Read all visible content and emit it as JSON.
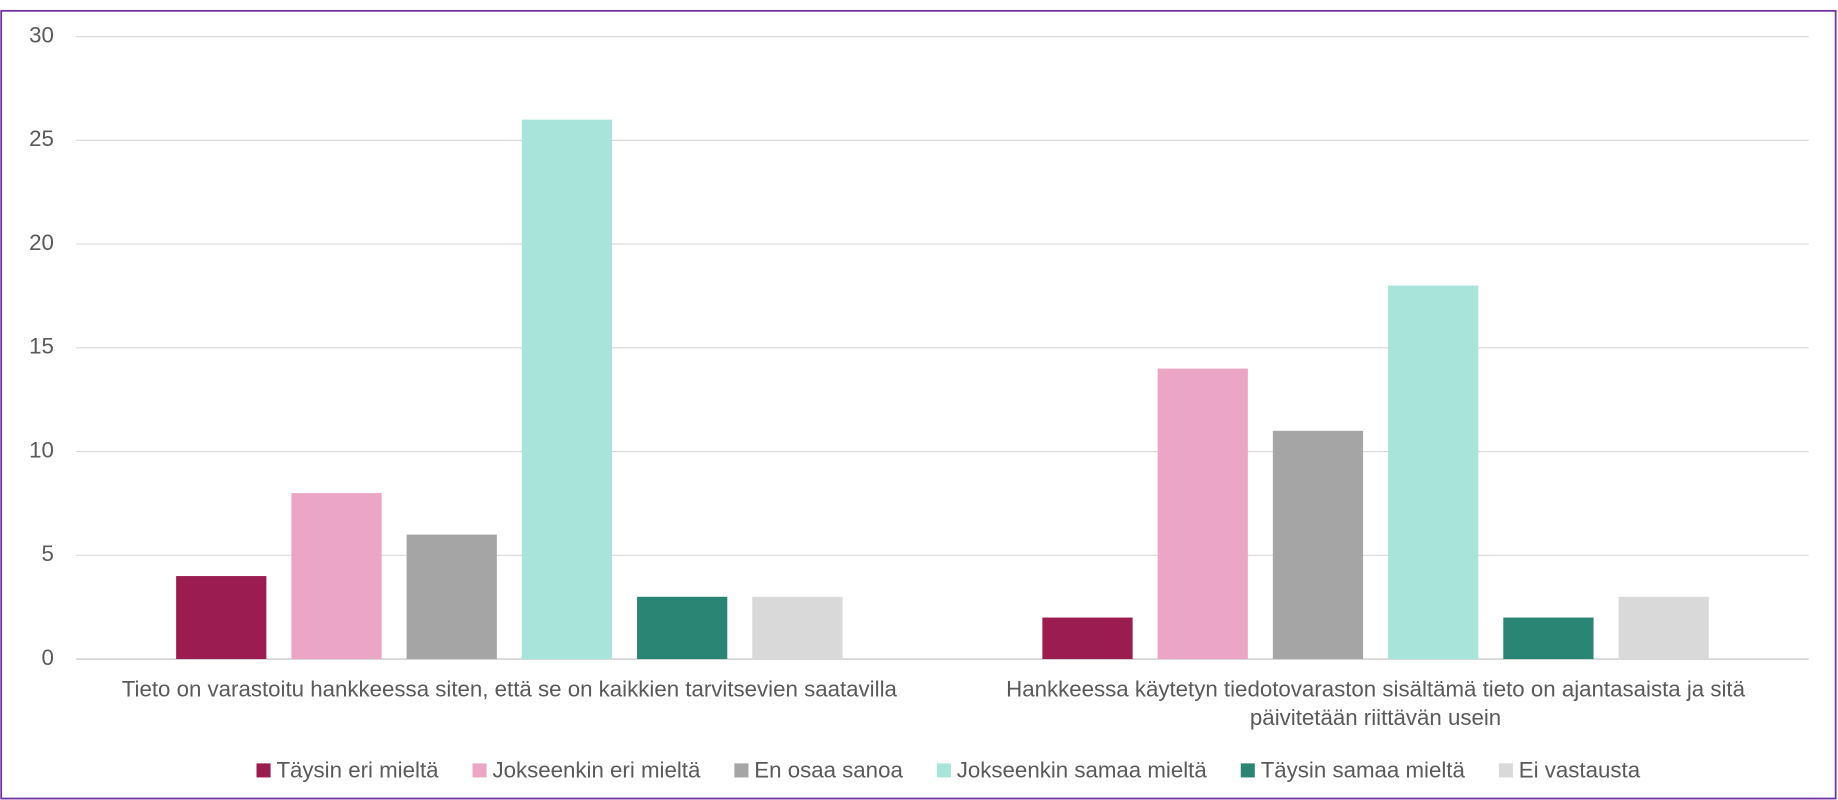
{
  "chart_data": {
    "type": "bar",
    "categories": [
      "Tieto on varastoitu hankkeessa siten, että se on kaikkien tarvitsevien saatavilla",
      "Hankkeessa käytetyn tiedotovaraston sisältämä tieto on ajantasaista ja sitä päivitetään riittävän usein"
    ],
    "series": [
      {
        "name": "Täysin eri mieltä",
        "color": "#9b1c4f",
        "values": [
          4,
          2
        ]
      },
      {
        "name": "Jokseenkin eri mieltä",
        "color": "#eca6c5",
        "values": [
          8,
          14
        ]
      },
      {
        "name": "En osaa sanoa",
        "color": "#a5a5a5",
        "values": [
          6,
          11
        ]
      },
      {
        "name": "Jokseenkin samaa mieltä",
        "color": "#a8e4d9",
        "values": [
          26,
          18
        ]
      },
      {
        "name": "Täysin samaa mieltä",
        "color": "#2a8575",
        "values": [
          3,
          2
        ]
      },
      {
        "name": "Ei vastausta",
        "color": "#d9d9d9",
        "values": [
          3,
          3
        ]
      }
    ],
    "ylim": [
      0,
      30
    ],
    "yticks": [
      0,
      5,
      10,
      15,
      20,
      25,
      30
    ],
    "grid": true,
    "legend": "bottom"
  }
}
